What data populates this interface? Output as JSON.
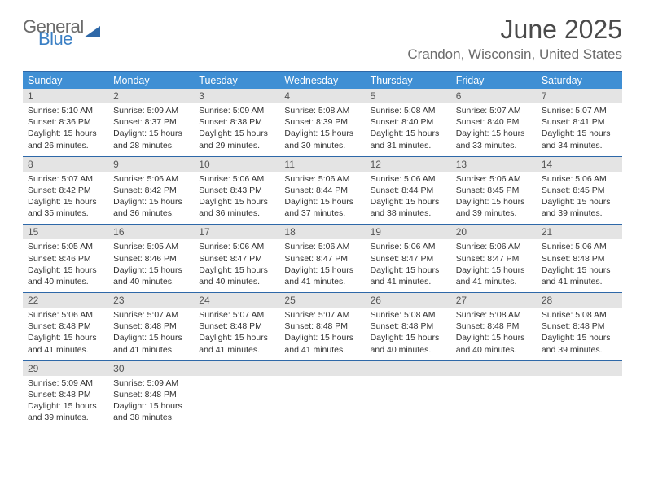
{
  "brand": {
    "word1": "General",
    "word2": "Blue"
  },
  "title": "June 2025",
  "location": "Crandon, Wisconsin, United States",
  "colors": {
    "header_bg": "#3f8fd4",
    "border": "#2e68a8",
    "daynum_bg": "#e4e4e4",
    "text_dark": "#333333",
    "text_gray": "#6b6b6b",
    "title_gray": "#4a4a4a"
  },
  "weekdays": [
    "Sunday",
    "Monday",
    "Tuesday",
    "Wednesday",
    "Thursday",
    "Friday",
    "Saturday"
  ],
  "weeks": [
    [
      {
        "n": "1",
        "sr": "5:10 AM",
        "ss": "8:36 PM",
        "dl": "15 hours and 26 minutes."
      },
      {
        "n": "2",
        "sr": "5:09 AM",
        "ss": "8:37 PM",
        "dl": "15 hours and 28 minutes."
      },
      {
        "n": "3",
        "sr": "5:09 AM",
        "ss": "8:38 PM",
        "dl": "15 hours and 29 minutes."
      },
      {
        "n": "4",
        "sr": "5:08 AM",
        "ss": "8:39 PM",
        "dl": "15 hours and 30 minutes."
      },
      {
        "n": "5",
        "sr": "5:08 AM",
        "ss": "8:40 PM",
        "dl": "15 hours and 31 minutes."
      },
      {
        "n": "6",
        "sr": "5:07 AM",
        "ss": "8:40 PM",
        "dl": "15 hours and 33 minutes."
      },
      {
        "n": "7",
        "sr": "5:07 AM",
        "ss": "8:41 PM",
        "dl": "15 hours and 34 minutes."
      }
    ],
    [
      {
        "n": "8",
        "sr": "5:07 AM",
        "ss": "8:42 PM",
        "dl": "15 hours and 35 minutes."
      },
      {
        "n": "9",
        "sr": "5:06 AM",
        "ss": "8:42 PM",
        "dl": "15 hours and 36 minutes."
      },
      {
        "n": "10",
        "sr": "5:06 AM",
        "ss": "8:43 PM",
        "dl": "15 hours and 36 minutes."
      },
      {
        "n": "11",
        "sr": "5:06 AM",
        "ss": "8:44 PM",
        "dl": "15 hours and 37 minutes."
      },
      {
        "n": "12",
        "sr": "5:06 AM",
        "ss": "8:44 PM",
        "dl": "15 hours and 38 minutes."
      },
      {
        "n": "13",
        "sr": "5:06 AM",
        "ss": "8:45 PM",
        "dl": "15 hours and 39 minutes."
      },
      {
        "n": "14",
        "sr": "5:06 AM",
        "ss": "8:45 PM",
        "dl": "15 hours and 39 minutes."
      }
    ],
    [
      {
        "n": "15",
        "sr": "5:05 AM",
        "ss": "8:46 PM",
        "dl": "15 hours and 40 minutes."
      },
      {
        "n": "16",
        "sr": "5:05 AM",
        "ss": "8:46 PM",
        "dl": "15 hours and 40 minutes."
      },
      {
        "n": "17",
        "sr": "5:06 AM",
        "ss": "8:47 PM",
        "dl": "15 hours and 40 minutes."
      },
      {
        "n": "18",
        "sr": "5:06 AM",
        "ss": "8:47 PM",
        "dl": "15 hours and 41 minutes."
      },
      {
        "n": "19",
        "sr": "5:06 AM",
        "ss": "8:47 PM",
        "dl": "15 hours and 41 minutes."
      },
      {
        "n": "20",
        "sr": "5:06 AM",
        "ss": "8:47 PM",
        "dl": "15 hours and 41 minutes."
      },
      {
        "n": "21",
        "sr": "5:06 AM",
        "ss": "8:48 PM",
        "dl": "15 hours and 41 minutes."
      }
    ],
    [
      {
        "n": "22",
        "sr": "5:06 AM",
        "ss": "8:48 PM",
        "dl": "15 hours and 41 minutes."
      },
      {
        "n": "23",
        "sr": "5:07 AM",
        "ss": "8:48 PM",
        "dl": "15 hours and 41 minutes."
      },
      {
        "n": "24",
        "sr": "5:07 AM",
        "ss": "8:48 PM",
        "dl": "15 hours and 41 minutes."
      },
      {
        "n": "25",
        "sr": "5:07 AM",
        "ss": "8:48 PM",
        "dl": "15 hours and 41 minutes."
      },
      {
        "n": "26",
        "sr": "5:08 AM",
        "ss": "8:48 PM",
        "dl": "15 hours and 40 minutes."
      },
      {
        "n": "27",
        "sr": "5:08 AM",
        "ss": "8:48 PM",
        "dl": "15 hours and 40 minutes."
      },
      {
        "n": "28",
        "sr": "5:08 AM",
        "ss": "8:48 PM",
        "dl": "15 hours and 39 minutes."
      }
    ],
    [
      {
        "n": "29",
        "sr": "5:09 AM",
        "ss": "8:48 PM",
        "dl": "15 hours and 39 minutes."
      },
      {
        "n": "30",
        "sr": "5:09 AM",
        "ss": "8:48 PM",
        "dl": "15 hours and 38 minutes."
      },
      null,
      null,
      null,
      null,
      null
    ]
  ],
  "labels": {
    "sunrise": "Sunrise: ",
    "sunset": "Sunset: ",
    "daylight": "Daylight: "
  }
}
